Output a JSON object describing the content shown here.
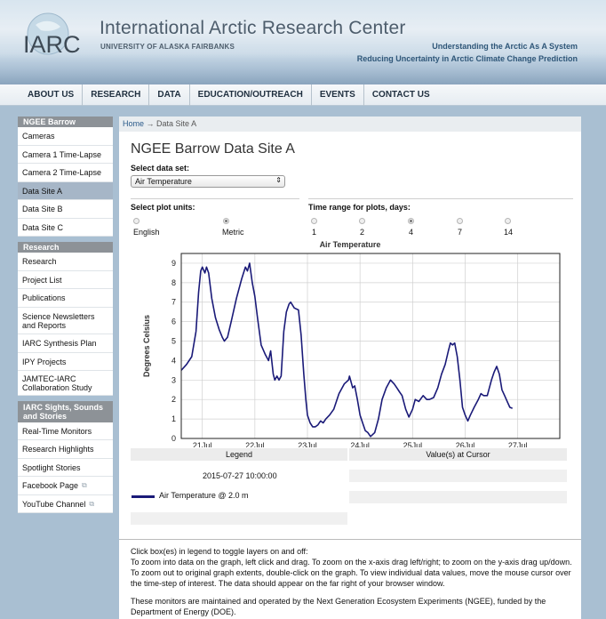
{
  "header": {
    "logo_text": "IARC",
    "title": "International Arctic Research Center",
    "subtitle": "UNIVERSITY OF ALASKA FAIRBANKS",
    "tagline1": "Understanding the Arctic As A System",
    "tagline2": "Reducing Uncertainty in Arctic Climate Change Prediction"
  },
  "nav": [
    "ABOUT US",
    "RESEARCH",
    "DATA",
    "EDUCATION/OUTREACH",
    "EVENTS",
    "CONTACT US"
  ],
  "sidebar": {
    "sections": [
      {
        "title": "NGEE Barrow",
        "items": [
          "Cameras",
          "Camera 1 Time-Lapse",
          "Camera 2 Time-Lapse",
          "Data Site A",
          "Data Site B",
          "Data Site C"
        ],
        "active": "Data Site A"
      },
      {
        "title": "Research",
        "items": [
          "Research",
          "Project List",
          "Publications",
          "Science Newsletters and Reports",
          "IARC Synthesis Plan",
          "IPY Projects",
          "JAMTEC-IARC Collaboration Study"
        ]
      },
      {
        "title": "IARC Sights, Sounds and Stories",
        "items": [
          "Real-Time Monitors",
          "Research Highlights",
          "Spotlight Stories",
          "Facebook Page",
          "YouTube Channel"
        ]
      }
    ]
  },
  "breadcrumb": {
    "home": "Home",
    "arrow": "→",
    "current": "Data Site A"
  },
  "page": {
    "title": "NGEE Barrow Data Site A",
    "dataset_label": "Select data set:",
    "dataset_value": "Air Temperature",
    "units_label": "Select plot units:",
    "units": [
      {
        "label": "English",
        "selected": false
      },
      {
        "label": "Metric",
        "selected": true
      }
    ],
    "range_label": "Time range for plots, days:",
    "ranges": [
      {
        "label": "1",
        "selected": false
      },
      {
        "label": "2",
        "selected": false
      },
      {
        "label": "4",
        "selected": true
      },
      {
        "label": "7",
        "selected": false
      },
      {
        "label": "14",
        "selected": false
      }
    ]
  },
  "chart_data": {
    "type": "line",
    "title": "Air Temperature",
    "ylabel": "Degrees Celsius",
    "xlabel": "",
    "ylim": [
      0,
      9.5
    ],
    "yticks": [
      0,
      1,
      2,
      3,
      4,
      5,
      6,
      7,
      8,
      9
    ],
    "xlim": [
      20.6,
      27.8
    ],
    "xticks": [
      {
        "v": 21,
        "label": "21Jul"
      },
      {
        "v": 22,
        "label": "22Jul"
      },
      {
        "v": 23,
        "label": "23Jul"
      },
      {
        "v": 24,
        "label": "24Jul"
      },
      {
        "v": 25,
        "label": "25Jul"
      },
      {
        "v": 26,
        "label": "26Jul"
      },
      {
        "v": 27,
        "label": "27Jul"
      }
    ],
    "grid": true,
    "color": "#1a1a78",
    "series": [
      {
        "name": "Air Temperature @ 2.0 m",
        "points": [
          [
            20.6,
            3.5
          ],
          [
            20.7,
            3.8
          ],
          [
            20.8,
            4.2
          ],
          [
            20.88,
            5.5
          ],
          [
            20.93,
            7.5
          ],
          [
            20.97,
            8.6
          ],
          [
            21.0,
            8.8
          ],
          [
            21.05,
            8.5
          ],
          [
            21.08,
            8.8
          ],
          [
            21.12,
            8.5
          ],
          [
            21.18,
            7.2
          ],
          [
            21.25,
            6.2
          ],
          [
            21.32,
            5.6
          ],
          [
            21.38,
            5.2
          ],
          [
            21.42,
            5.0
          ],
          [
            21.48,
            5.2
          ],
          [
            21.55,
            6.0
          ],
          [
            21.65,
            7.2
          ],
          [
            21.75,
            8.2
          ],
          [
            21.82,
            8.8
          ],
          [
            21.86,
            8.6
          ],
          [
            21.9,
            9.0
          ],
          [
            21.95,
            8.0
          ],
          [
            22.0,
            7.3
          ],
          [
            22.05,
            6.2
          ],
          [
            22.12,
            4.8
          ],
          [
            22.2,
            4.3
          ],
          [
            22.26,
            4.0
          ],
          [
            22.3,
            4.5
          ],
          [
            22.35,
            3.3
          ],
          [
            22.38,
            3.0
          ],
          [
            22.42,
            3.2
          ],
          [
            22.46,
            3.0
          ],
          [
            22.5,
            3.2
          ],
          [
            22.55,
            5.5
          ],
          [
            22.6,
            6.5
          ],
          [
            22.65,
            6.9
          ],
          [
            22.68,
            7.0
          ],
          [
            22.75,
            6.7
          ],
          [
            22.83,
            6.6
          ],
          [
            22.88,
            5.3
          ],
          [
            22.93,
            3.3
          ],
          [
            22.97,
            2.0
          ],
          [
            23.0,
            1.2
          ],
          [
            23.05,
            0.8
          ],
          [
            23.1,
            0.6
          ],
          [
            23.15,
            0.6
          ],
          [
            23.2,
            0.7
          ],
          [
            23.25,
            0.9
          ],
          [
            23.3,
            0.8
          ],
          [
            23.35,
            1.0
          ],
          [
            23.42,
            1.2
          ],
          [
            23.5,
            1.5
          ],
          [
            23.6,
            2.3
          ],
          [
            23.7,
            2.8
          ],
          [
            23.78,
            3.0
          ],
          [
            23.8,
            3.2
          ],
          [
            23.86,
            2.6
          ],
          [
            23.9,
            2.7
          ],
          [
            23.95,
            2.0
          ],
          [
            24.0,
            1.2
          ],
          [
            24.05,
            0.8
          ],
          [
            24.1,
            0.4
          ],
          [
            24.15,
            0.3
          ],
          [
            24.2,
            0.1
          ],
          [
            24.28,
            0.3
          ],
          [
            24.35,
            1.0
          ],
          [
            24.42,
            2.0
          ],
          [
            24.5,
            2.6
          ],
          [
            24.58,
            3.0
          ],
          [
            24.65,
            2.8
          ],
          [
            24.7,
            2.6
          ],
          [
            24.75,
            2.4
          ],
          [
            24.8,
            2.2
          ],
          [
            24.87,
            1.5
          ],
          [
            24.93,
            1.1
          ],
          [
            25.0,
            1.5
          ],
          [
            25.05,
            2.0
          ],
          [
            25.12,
            1.9
          ],
          [
            25.2,
            2.2
          ],
          [
            25.27,
            2.0
          ],
          [
            25.32,
            2.0
          ],
          [
            25.4,
            2.1
          ],
          [
            25.48,
            2.6
          ],
          [
            25.55,
            3.3
          ],
          [
            25.62,
            3.8
          ],
          [
            25.68,
            4.5
          ],
          [
            25.72,
            4.9
          ],
          [
            25.76,
            4.8
          ],
          [
            25.8,
            4.9
          ],
          [
            25.85,
            4.2
          ],
          [
            25.9,
            3.0
          ],
          [
            25.95,
            1.6
          ],
          [
            26.0,
            1.2
          ],
          [
            26.05,
            0.9
          ],
          [
            26.1,
            1.2
          ],
          [
            26.17,
            1.6
          ],
          [
            26.25,
            2.0
          ],
          [
            26.3,
            2.3
          ],
          [
            26.35,
            2.2
          ],
          [
            26.42,
            2.2
          ],
          [
            26.5,
            3.0
          ],
          [
            26.55,
            3.4
          ],
          [
            26.6,
            3.7
          ],
          [
            26.65,
            3.3
          ],
          [
            26.7,
            2.5
          ],
          [
            26.75,
            2.2
          ],
          [
            26.8,
            1.9
          ],
          [
            26.85,
            1.6
          ],
          [
            26.9,
            1.55
          ]
        ]
      }
    ]
  },
  "table": {
    "col1": "Legend",
    "col2": "Value(s) at Cursor",
    "timestamp": "2015-07-27 10:00:00",
    "series_label": "Air Temperature @ 2.0 m"
  },
  "notes": {
    "p1_line1": "Click box(es) in legend to toggle layers on and off:",
    "p1_line2": "To zoom into data on the graph, left click and drag. To zoom on the x-axis drag left/right; to zoom on the y-axis drag up/down. To zoom out to original graph extents, double-click on the graph. To view individual data values, move the mouse cursor over the time-step of interest. The data should appear on the far right of your browser window.",
    "p2": "These monitors are maintained and operated by the Next Generation Ecosystem Experiments (NGEE), funded by the Department of Energy (DOE)."
  }
}
